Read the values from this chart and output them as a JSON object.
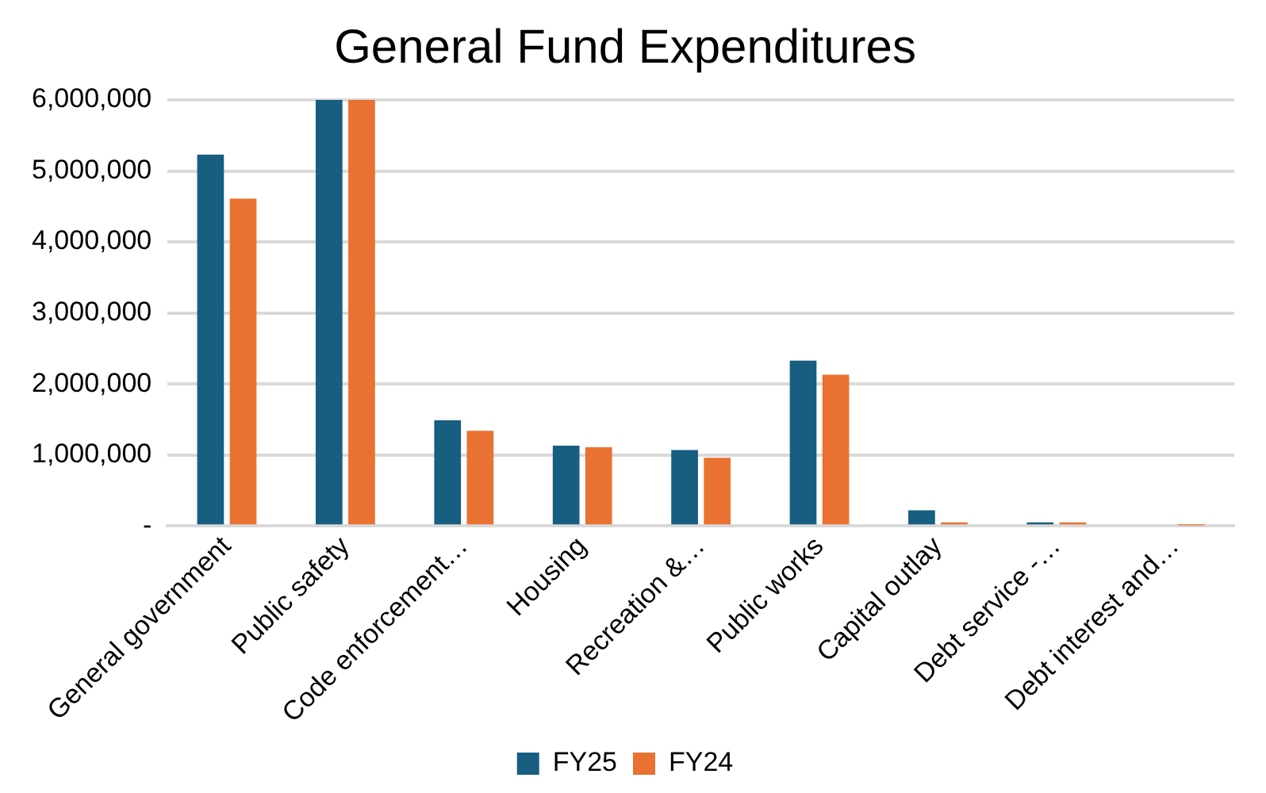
{
  "chart_data": {
    "type": "bar",
    "title": "General Fund Expenditures",
    "categories": [
      "General government",
      "Public safety",
      "Code enforcement…",
      "Housing",
      "Recreation &…",
      "Public works",
      "Capital outlay",
      "Debt service -…",
      "Debt interest and…"
    ],
    "series": [
      {
        "name": "FY25",
        "color": "#175e80",
        "values": [
          5230000,
          6000000,
          1490000,
          1130000,
          1070000,
          2330000,
          220000,
          50000,
          0
        ]
      },
      {
        "name": "FY24",
        "color": "#e97132",
        "values": [
          4610000,
          6000000,
          1340000,
          1110000,
          960000,
          2130000,
          50000,
          50000,
          10000
        ]
      }
    ],
    "ylim": [
      0,
      6000000
    ],
    "yticks": [
      {
        "value": 0,
        "label": "-"
      },
      {
        "value": 1000000,
        "label": "1,000,000"
      },
      {
        "value": 2000000,
        "label": "2,000,000"
      },
      {
        "value": 3000000,
        "label": "3,000,000"
      },
      {
        "value": 4000000,
        "label": "4,000,000"
      },
      {
        "value": 5000000,
        "label": "5,000,000"
      },
      {
        "value": 6000000,
        "label": "6,000,000"
      }
    ],
    "grid": "y",
    "legend": "bottom"
  }
}
